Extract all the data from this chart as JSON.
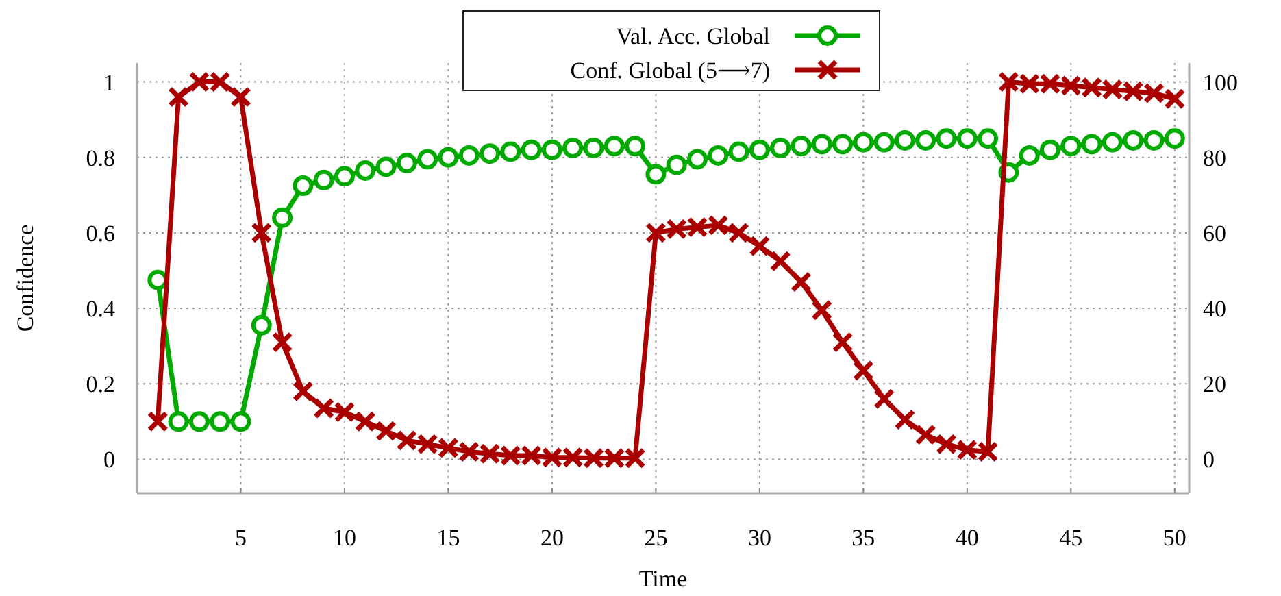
{
  "chart_data": {
    "type": "line",
    "xlabel": "Time",
    "ylabel": "Confidence",
    "x": [
      1,
      2,
      3,
      4,
      5,
      6,
      7,
      8,
      9,
      10,
      11,
      12,
      13,
      14,
      15,
      16,
      17,
      18,
      19,
      20,
      21,
      22,
      23,
      24,
      25,
      26,
      27,
      28,
      29,
      30,
      31,
      32,
      33,
      34,
      35,
      36,
      37,
      38,
      39,
      40,
      41,
      42,
      43,
      44,
      45,
      46,
      47,
      48,
      49,
      50
    ],
    "xlim": [
      0,
      50.7
    ],
    "xticks": [
      5,
      10,
      15,
      20,
      25,
      30,
      35,
      40,
      45,
      50
    ],
    "ylim": [
      -0.09,
      1.05
    ],
    "yticks": [
      0,
      0.2,
      0.4,
      0.6,
      0.8,
      1
    ],
    "y2lim": [
      -9,
      105
    ],
    "y2ticks": [
      0,
      20,
      40,
      60,
      80,
      100
    ],
    "grid": true,
    "legend": "top",
    "line_style": "solid",
    "series": [
      {
        "name": "Val. Acc. Global",
        "color": "#00aa00",
        "axis": "y2",
        "marker": "circle",
        "values": [
          47.5,
          10,
          10,
          10,
          10,
          35.5,
          64,
          72.5,
          74,
          75,
          76.5,
          77.5,
          78.5,
          79.5,
          80,
          80.5,
          81,
          81.5,
          82,
          82,
          82.5,
          82.5,
          83,
          83,
          75.5,
          78,
          79.5,
          80.5,
          81.5,
          82,
          82.5,
          83,
          83.5,
          83.5,
          84,
          84,
          84.5,
          84.5,
          85,
          85,
          85,
          76,
          80.5,
          82,
          83,
          83.5,
          84,
          84.5,
          84.5,
          85
        ]
      },
      {
        "name": "Conf. Global (5⟶7)",
        "color": "#aa0000",
        "axis": "y",
        "marker": "cross",
        "values": [
          0.1,
          0.96,
          1.0,
          1.0,
          0.96,
          0.6,
          0.31,
          0.18,
          0.135,
          0.125,
          0.1,
          0.075,
          0.05,
          0.04,
          0.03,
          0.02,
          0.015,
          0.01,
          0.01,
          0.005,
          0.005,
          0.003,
          0.003,
          0.003,
          0.6,
          0.61,
          0.615,
          0.62,
          0.6,
          0.565,
          0.525,
          0.47,
          0.395,
          0.31,
          0.235,
          0.16,
          0.105,
          0.065,
          0.04,
          0.025,
          0.02,
          1.0,
          0.995,
          0.995,
          0.99,
          0.985,
          0.98,
          0.975,
          0.97,
          0.955
        ]
      }
    ]
  }
}
